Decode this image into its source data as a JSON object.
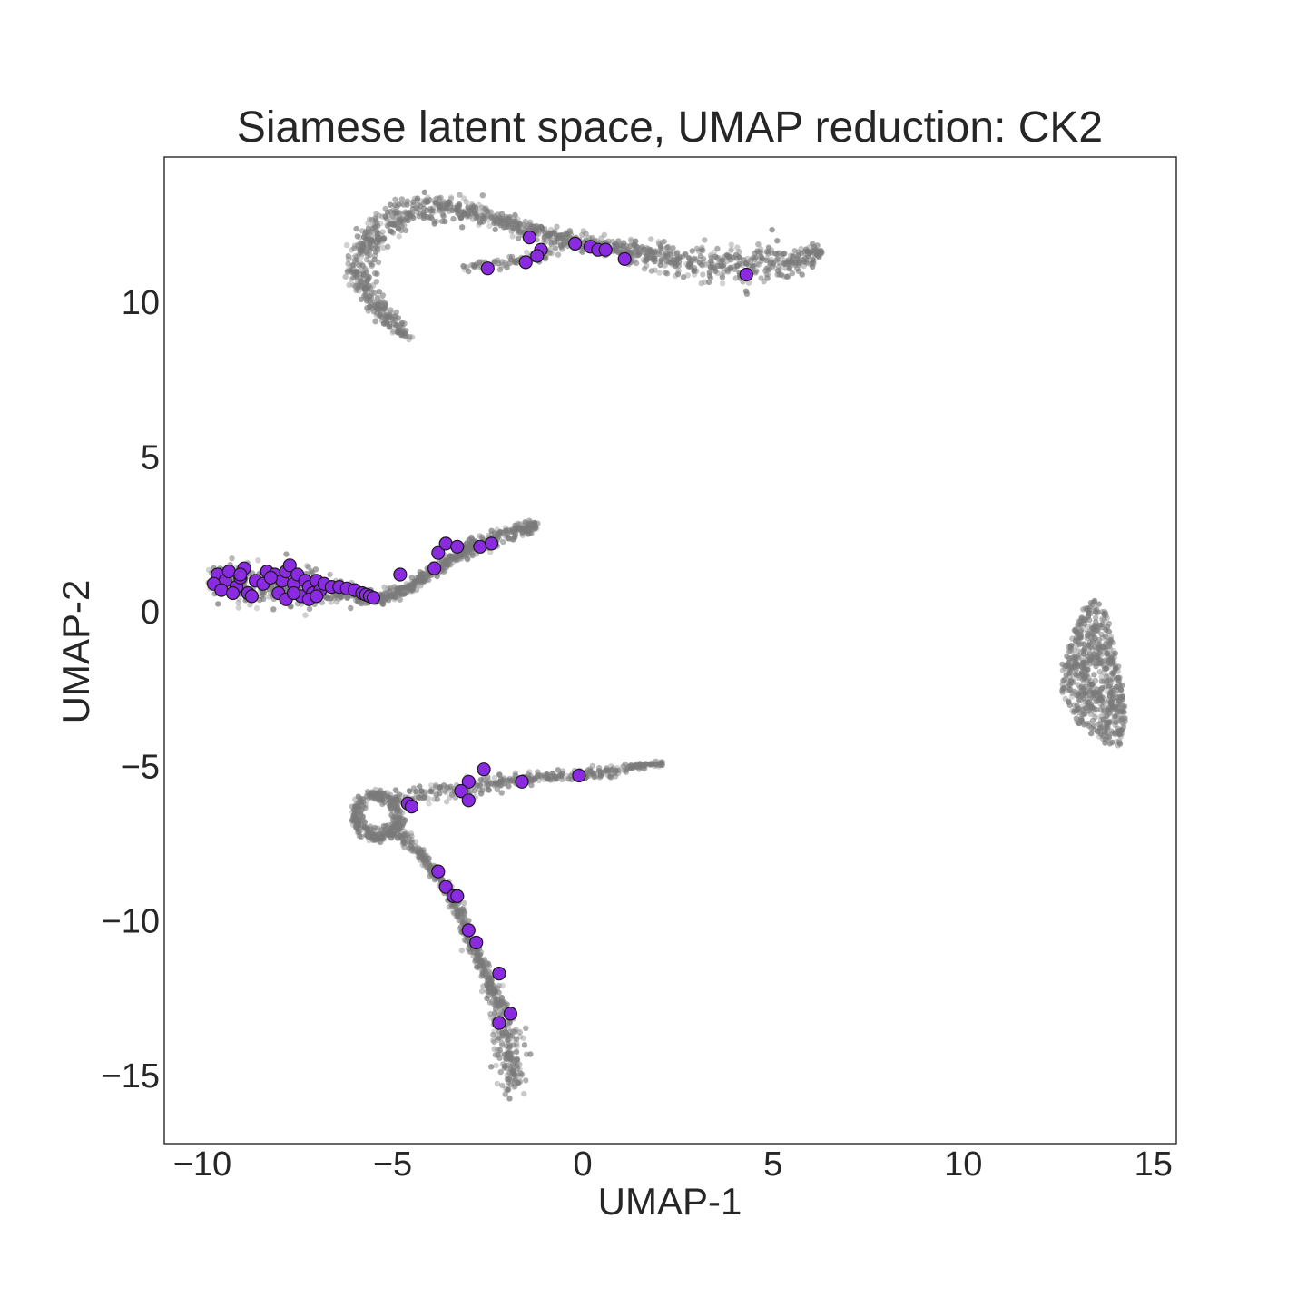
{
  "chart_data": {
    "type": "scatter",
    "title": "Siamese latent space, UMAP reduction: CK2",
    "xlabel": "UMAP-1",
    "ylabel": "UMAP-2",
    "xlim": [
      -11,
      15.6
    ],
    "ylim": [
      -17.2,
      14.7
    ],
    "grid": false,
    "x_ticks": [
      -10,
      -5,
      0,
      5,
      10,
      15
    ],
    "y_ticks": [
      -15,
      -10,
      -5,
      0,
      5,
      10
    ],
    "x_tick_labels": [
      "−10",
      "−5",
      "0",
      "5",
      "10",
      "15"
    ],
    "y_tick_labels": [
      "−15",
      "−10",
      "−5",
      "0",
      "5",
      "10"
    ],
    "background_color": "#7a7a7a",
    "highlight_color": "#8a2be2",
    "highlight_edge_color": "#1a1a1a",
    "series": [
      {
        "role": "background",
        "marker_size": "small",
        "clusters": [
          {
            "id": "top-arc",
            "path": [
              [
                -4.6,
                8.9
              ],
              [
                -5.2,
                9.6
              ],
              [
                -5.8,
                10.5
              ],
              [
                -5.9,
                11.3
              ],
              [
                -5.5,
                12.2
              ],
              [
                -4.7,
                12.8
              ],
              [
                -3.8,
                13.1
              ],
              [
                -2.9,
                12.9
              ],
              [
                -1.8,
                12.5
              ],
              [
                -0.7,
                12.1
              ],
              [
                0.5,
                11.8
              ],
              [
                1.8,
                11.5
              ],
              [
                3.0,
                11.3
              ],
              [
                4.2,
                11.2
              ],
              [
                5.3,
                11.3
              ],
              [
                6.3,
                11.6
              ]
            ],
            "width": [
              0.12,
              0.16,
              0.22,
              0.3,
              0.3,
              0.26,
              0.22,
              0.16,
              0.13,
              0.13,
              0.15,
              0.22,
              0.3,
              0.34,
              0.25,
              0.1
            ],
            "count": 1300
          },
          {
            "id": "top-spur",
            "path": [
              [
                -3.2,
                11.1
              ],
              [
                -2.4,
                11.2
              ],
              [
                -1.6,
                11.4
              ],
              [
                -0.8,
                11.6
              ]
            ],
            "width": [
              0.08,
              0.1,
              0.1,
              0.1
            ],
            "count": 70
          },
          {
            "id": "middle-arm",
            "path": [
              [
                -9.7,
                1.0
              ],
              [
                -9.0,
                1.0
              ],
              [
                -8.2,
                0.9
              ],
              [
                -7.4,
                0.8
              ],
              [
                -6.6,
                0.65
              ],
              [
                -5.9,
                0.5
              ],
              [
                -5.3,
                0.45
              ],
              [
                -4.5,
                0.8
              ],
              [
                -3.9,
                1.4
              ],
              [
                -3.2,
                1.9
              ],
              [
                -2.5,
                2.3
              ],
              [
                -1.8,
                2.6
              ],
              [
                -1.2,
                2.8
              ]
            ],
            "width": [
              0.22,
              0.32,
              0.36,
              0.32,
              0.2,
              0.12,
              0.1,
              0.08,
              0.1,
              0.14,
              0.16,
              0.13,
              0.08
            ],
            "count": 850
          },
          {
            "id": "bottom-loop",
            "ellipse": {
              "cx": -5.4,
              "cy": -6.6,
              "rx": 0.65,
              "ry": 0.8
            },
            "count": 320
          },
          {
            "id": "bottom-upper-arm",
            "path": [
              [
                -4.8,
                -6.0
              ],
              [
                -4.0,
                -5.9
              ],
              [
                -3.0,
                -5.7
              ],
              [
                -2.0,
                -5.5
              ],
              [
                -1.0,
                -5.35
              ],
              [
                0.0,
                -5.25
              ],
              [
                1.0,
                -5.1
              ],
              [
                2.1,
                -4.9
              ]
            ],
            "width": [
              0.2,
              0.18,
              0.14,
              0.12,
              0.1,
              0.09,
              0.08,
              0.06
            ],
            "count": 340
          },
          {
            "id": "bottom-lower-arm",
            "path": [
              [
                -4.9,
                -7.0
              ],
              [
                -4.3,
                -7.8
              ],
              [
                -3.7,
                -8.7
              ],
              [
                -3.3,
                -9.6
              ],
              [
                -3.0,
                -10.5
              ],
              [
                -2.6,
                -11.5
              ],
              [
                -2.3,
                -12.4
              ],
              [
                -2.1,
                -13.4
              ],
              [
                -1.9,
                -14.2
              ],
              [
                -1.85,
                -14.9
              ],
              [
                -1.9,
                -15.5
              ]
            ],
            "width": [
              0.16,
              0.1,
              0.1,
              0.11,
              0.12,
              0.12,
              0.16,
              0.3,
              0.32,
              0.27,
              0.14
            ],
            "count": 620
          },
          {
            "id": "right-blob",
            "polygon": [
              [
                13.5,
                0.4
              ],
              [
                13.8,
                -0.1
              ],
              [
                14.0,
                -1.2
              ],
              [
                14.2,
                -2.5
              ],
              [
                14.3,
                -3.4
              ],
              [
                14.1,
                -4.4
              ],
              [
                13.6,
                -4.2
              ],
              [
                13.0,
                -3.6
              ],
              [
                12.6,
                -2.7
              ],
              [
                12.6,
                -1.5
              ],
              [
                12.9,
                -0.5
              ],
              [
                13.2,
                0.2
              ]
            ],
            "count": 620
          }
        ]
      },
      {
        "role": "highlight",
        "marker_size": "large",
        "points": [
          [
            -1.4,
            12.1
          ],
          [
            -1.1,
            11.7
          ],
          [
            -1.2,
            11.5
          ],
          [
            -1.5,
            11.3
          ],
          [
            -2.5,
            11.1
          ],
          [
            -0.2,
            11.9
          ],
          [
            0.2,
            11.8
          ],
          [
            0.4,
            11.7
          ],
          [
            0.6,
            11.7
          ],
          [
            1.1,
            11.4
          ],
          [
            4.3,
            10.9
          ],
          [
            -4.8,
            1.2
          ],
          [
            -3.9,
            1.4
          ],
          [
            -3.8,
            1.9
          ],
          [
            -3.6,
            2.2
          ],
          [
            -3.3,
            2.1
          ],
          [
            -2.7,
            2.1
          ],
          [
            -2.4,
            2.2
          ],
          [
            -9.6,
            1.2
          ],
          [
            -9.4,
            1.0
          ],
          [
            -9.3,
            1.3
          ],
          [
            -9.1,
            0.8
          ],
          [
            -9.0,
            1.1
          ],
          [
            -8.9,
            1.4
          ],
          [
            -8.8,
            0.6
          ],
          [
            -8.6,
            1.0
          ],
          [
            -8.4,
            0.9
          ],
          [
            -8.3,
            1.3
          ],
          [
            -8.1,
            1.2
          ],
          [
            -8.0,
            0.6
          ],
          [
            -7.9,
            1.0
          ],
          [
            -7.8,
            1.3
          ],
          [
            -7.7,
            1.5
          ],
          [
            -7.6,
            0.9
          ],
          [
            -7.5,
            1.2
          ],
          [
            -7.4,
            0.5
          ],
          [
            -7.3,
            1.0
          ],
          [
            -7.2,
            0.8
          ],
          [
            -7.1,
            0.6
          ],
          [
            -7.0,
            1.0
          ],
          [
            -6.9,
            0.7
          ],
          [
            -6.8,
            0.9
          ],
          [
            -6.6,
            0.8
          ],
          [
            -6.4,
            0.8
          ],
          [
            -6.2,
            0.75
          ],
          [
            -6.0,
            0.7
          ],
          [
            -5.8,
            0.6
          ],
          [
            -5.7,
            0.55
          ],
          [
            -5.6,
            0.5
          ],
          [
            -5.5,
            0.45
          ],
          [
            -9.7,
            0.9
          ],
          [
            -9.5,
            0.7
          ],
          [
            -9.2,
            0.6
          ],
          [
            -8.7,
            0.5
          ],
          [
            -7.8,
            0.4
          ],
          [
            -7.2,
            0.4
          ],
          [
            -7.0,
            0.5
          ],
          [
            -8.2,
            1.1
          ],
          [
            -7.6,
            0.6
          ],
          [
            -9.0,
            1.2
          ],
          [
            -2.6,
            -5.1
          ],
          [
            -3.0,
            -5.5
          ],
          [
            -3.2,
            -5.8
          ],
          [
            -3.0,
            -6.1
          ],
          [
            -4.6,
            -6.2
          ],
          [
            -4.5,
            -6.3
          ],
          [
            -1.6,
            -5.5
          ],
          [
            -0.1,
            -5.3
          ],
          [
            -3.8,
            -8.4
          ],
          [
            -3.6,
            -8.9
          ],
          [
            -3.4,
            -9.2
          ],
          [
            -3.3,
            -9.2
          ],
          [
            -3.0,
            -10.3
          ],
          [
            -2.8,
            -10.7
          ],
          [
            -2.2,
            -11.7
          ],
          [
            -1.9,
            -13.0
          ],
          [
            -2.2,
            -13.3
          ]
        ]
      }
    ]
  }
}
